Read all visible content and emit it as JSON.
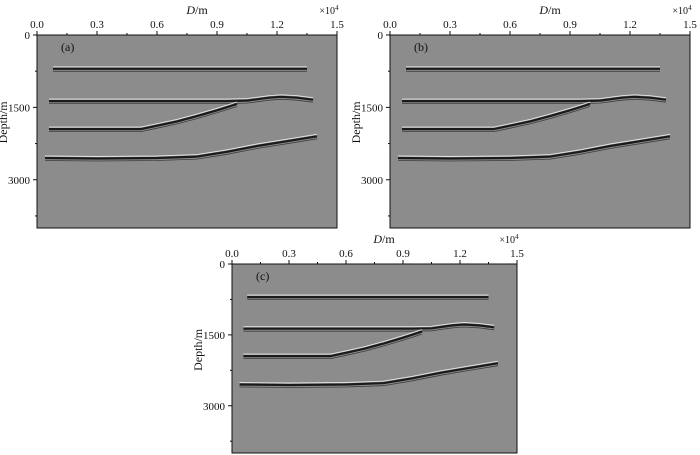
{
  "panels": [
    {
      "label": "(a)"
    },
    {
      "label": "(b)"
    },
    {
      "label": "(c)"
    }
  ],
  "axes": {
    "x_label_italic": "D",
    "x_label_unit": "/m",
    "x_multiplier": "×10",
    "x_multiplier_exp": "4",
    "y_label": "Depth/m",
    "x_ticks": [
      "0.0",
      "0.3",
      "0.6",
      "0.9",
      "1.2",
      "1.5"
    ],
    "y_ticks": [
      "0",
      "1500",
      "3000"
    ]
  },
  "chart_data": {
    "type": "other",
    "description_kind": "seismic migration images",
    "x_range": [
      0,
      1.5
    ],
    "x_scale_note": "×10^4 m",
    "y_range": [
      0,
      4000
    ],
    "reflectors": [
      {
        "id": "r1",
        "points": [
          [
            0.08,
            700
          ],
          [
            1.35,
            700
          ]
        ]
      },
      {
        "id": "r2",
        "points": [
          [
            0.06,
            1370
          ],
          [
            0.95,
            1370
          ],
          [
            1.05,
            1360
          ],
          [
            1.16,
            1300
          ],
          [
            1.22,
            1280
          ],
          [
            1.3,
            1300
          ],
          [
            1.38,
            1340
          ]
        ]
      },
      {
        "id": "r3",
        "points": [
          [
            0.06,
            1950
          ],
          [
            0.52,
            1950
          ],
          [
            0.6,
            1880
          ],
          [
            0.7,
            1790
          ],
          [
            0.8,
            1680
          ],
          [
            0.9,
            1560
          ],
          [
            1.0,
            1430
          ]
        ]
      },
      {
        "id": "r4",
        "points": [
          [
            0.04,
            2550
          ],
          [
            0.3,
            2560
          ],
          [
            0.6,
            2550
          ],
          [
            0.8,
            2520
          ],
          [
            0.95,
            2420
          ],
          [
            1.1,
            2300
          ],
          [
            1.25,
            2200
          ],
          [
            1.4,
            2100
          ]
        ]
      }
    ]
  },
  "style": {
    "panel_fill": "#8c8c8c",
    "axis_color": "#111111"
  }
}
